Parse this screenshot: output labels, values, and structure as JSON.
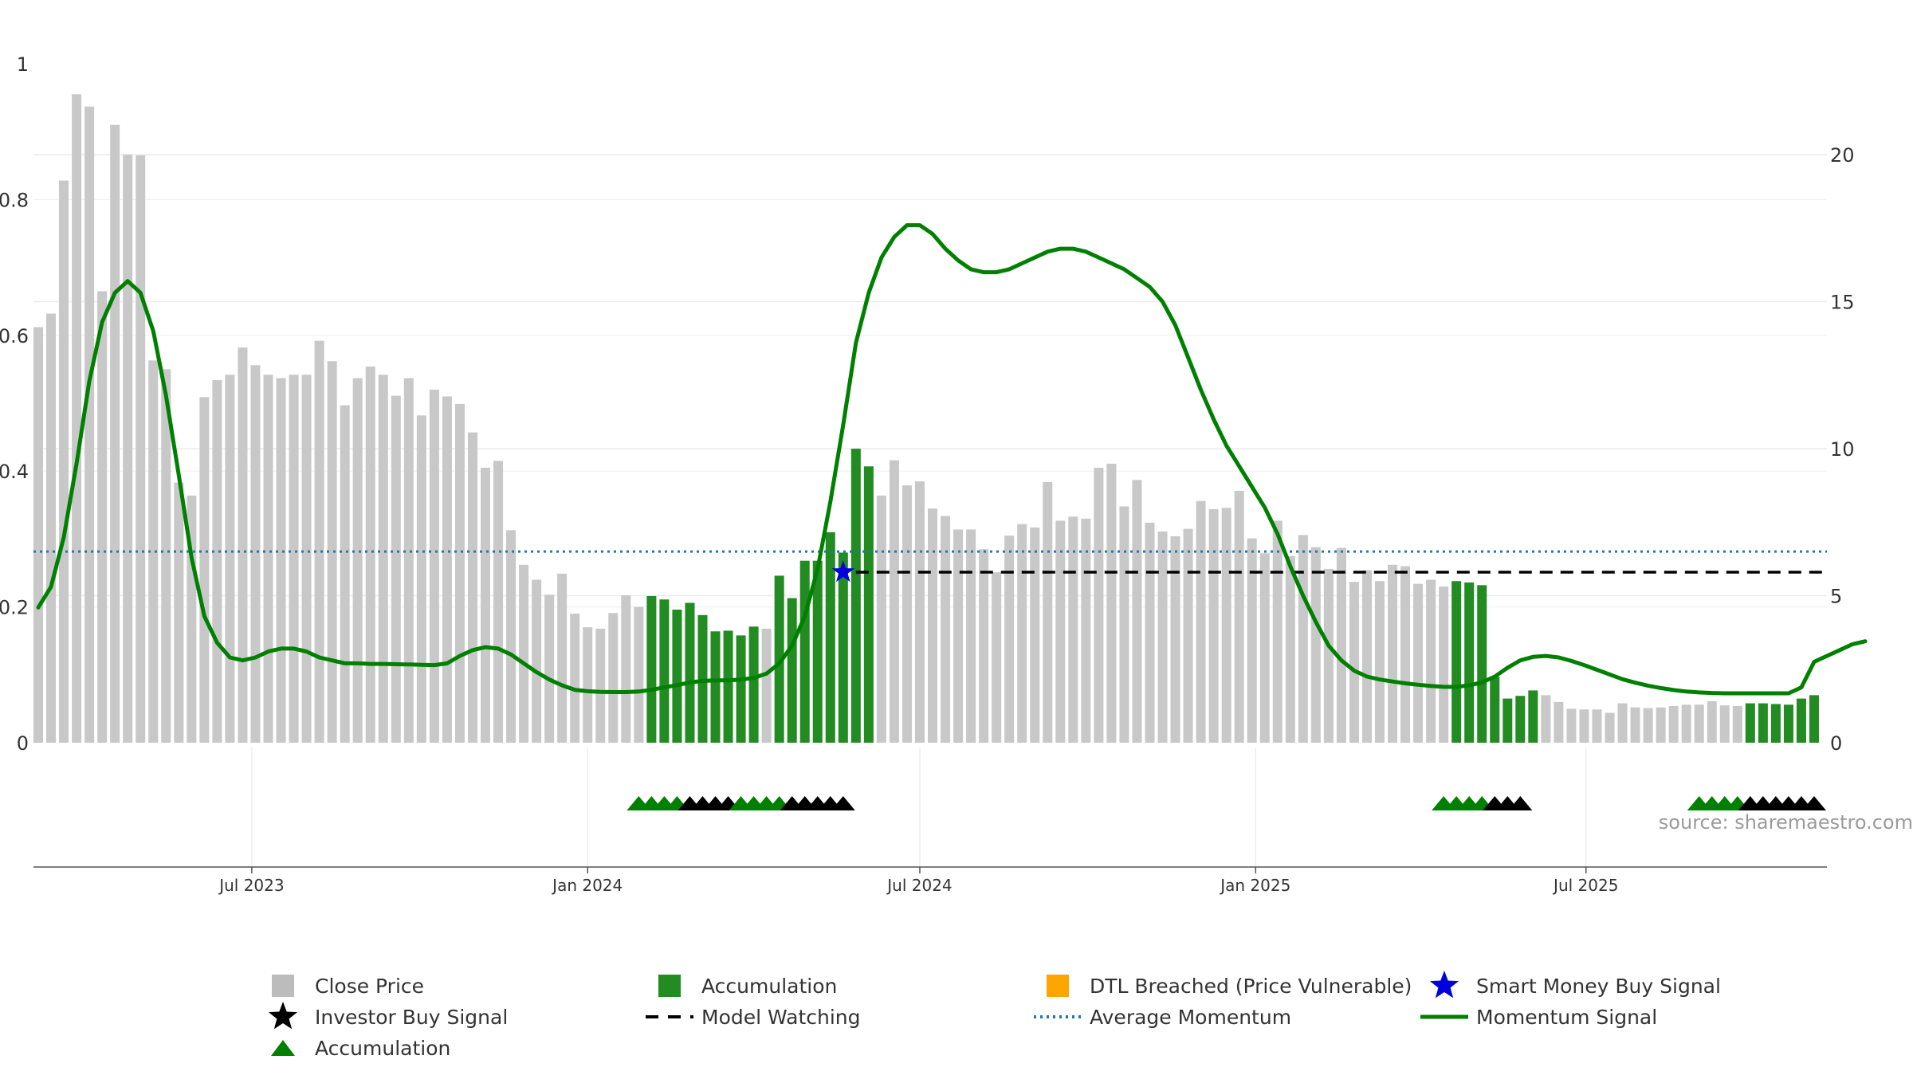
{
  "chart_data": {
    "type": "bar",
    "x": [
      "2023-03-06",
      "2023-03-13",
      "2023-03-20",
      "2023-03-27",
      "2023-04-03",
      "2023-04-10",
      "2023-04-17",
      "2023-04-24",
      "2023-05-01",
      "2023-05-08",
      "2023-05-15",
      "2023-05-22",
      "2023-05-29",
      "2023-06-05",
      "2023-06-12",
      "2023-06-19",
      "2023-06-26",
      "2023-07-03",
      "2023-07-10",
      "2023-07-17",
      "2023-07-24",
      "2023-07-31",
      "2023-08-07",
      "2023-08-14",
      "2023-08-21",
      "2023-08-28",
      "2023-09-04",
      "2023-09-11",
      "2023-09-18",
      "2023-09-25",
      "2023-10-02",
      "2023-10-09",
      "2023-10-16",
      "2023-10-23",
      "2023-10-30",
      "2023-11-06",
      "2023-11-13",
      "2023-11-20",
      "2023-11-27",
      "2023-12-04",
      "2023-12-11",
      "2023-12-18",
      "2023-12-25",
      "2024-01-01",
      "2024-01-08",
      "2024-01-15",
      "2024-01-22",
      "2024-01-29",
      "2024-02-05",
      "2024-02-12",
      "2024-02-19",
      "2024-02-26",
      "2024-03-04",
      "2024-03-11",
      "2024-03-18",
      "2024-03-25",
      "2024-04-01",
      "2024-04-08",
      "2024-04-15",
      "2024-04-22",
      "2024-04-29",
      "2024-05-06",
      "2024-05-13",
      "2024-05-20",
      "2024-05-27",
      "2024-06-03",
      "2024-06-10",
      "2024-06-17",
      "2024-06-24",
      "2024-07-01",
      "2024-07-08",
      "2024-07-15",
      "2024-07-22",
      "2024-07-29",
      "2024-08-05",
      "2024-08-12",
      "2024-08-19",
      "2024-08-26",
      "2024-09-02",
      "2024-09-09",
      "2024-09-16",
      "2024-09-23",
      "2024-09-30",
      "2024-10-07",
      "2024-10-14",
      "2024-10-21",
      "2024-10-28",
      "2024-11-04",
      "2024-11-11",
      "2024-11-18",
      "2024-11-25",
      "2024-12-02",
      "2024-12-09",
      "2024-12-16",
      "2024-12-23",
      "2024-12-30",
      "2025-01-06",
      "2025-01-13",
      "2025-01-20",
      "2025-01-27",
      "2025-02-03",
      "2025-02-10",
      "2025-02-17",
      "2025-02-24",
      "2025-03-03",
      "2025-03-10",
      "2025-03-17",
      "2025-03-24",
      "2025-03-31",
      "2025-04-07",
      "2025-04-14",
      "2025-04-21",
      "2025-04-28",
      "2025-05-05",
      "2025-05-12",
      "2025-05-19",
      "2025-05-26",
      "2025-06-02",
      "2025-06-09",
      "2025-06-16",
      "2025-06-23",
      "2025-06-30",
      "2025-07-07",
      "2025-07-14",
      "2025-07-21",
      "2025-07-28",
      "2025-08-04",
      "2025-08-11",
      "2025-08-18",
      "2025-08-25",
      "2025-09-01",
      "2025-09-08",
      "2025-09-15",
      "2025-09-22",
      "2025-09-29",
      "2025-10-06",
      "2025-10-13",
      "2025-10-20",
      "2025-10-27",
      "2025-11-03",
      "2025-11-10"
    ],
    "close_price": [
      0.612,
      0.632,
      0.828,
      0.955,
      0.937,
      0.665,
      0.91,
      0.866,
      0.865,
      0.563,
      0.55,
      0.383,
      0.364,
      0.509,
      0.534,
      0.542,
      0.582,
      0.556,
      0.542,
      0.537,
      0.542,
      0.542,
      0.592,
      0.562,
      0.497,
      0.537,
      0.554,
      0.542,
      0.511,
      0.537,
      0.482,
      0.52,
      0.51,
      0.499,
      0.457,
      0.405,
      0.415,
      0.313,
      0.262,
      0.24,
      0.218,
      0.249,
      0.19,
      0.17,
      0.168,
      0.191,
      0.217,
      0.2,
      0.216,
      0.211,
      0.196,
      0.206,
      0.188,
      0.164,
      0.165,
      0.158,
      0.171,
      0.168,
      0.246,
      0.213,
      0.268,
      0.268,
      0.31,
      0.28,
      0.433,
      0.407,
      0.364,
      0.416,
      0.379,
      0.385,
      0.345,
      0.334,
      0.314,
      0.314,
      0.285,
      0.251,
      0.305,
      0.322,
      0.317,
      0.384,
      0.327,
      0.333,
      0.33,
      0.405,
      0.411,
      0.348,
      0.387,
      0.324,
      0.311,
      0.304,
      0.315,
      0.356,
      0.344,
      0.346,
      0.371,
      0.301,
      0.279,
      0.327,
      0.275,
      0.306,
      0.288,
      0.256,
      0.287,
      0.237,
      0.254,
      0.238,
      0.262,
      0.26,
      0.234,
      0.24,
      0.23,
      0.238,
      0.236,
      0.232,
      0.097,
      0.065,
      0.069,
      0.077,
      0.07,
      0.06,
      0.05,
      0.049,
      0.049,
      0.044,
      0.058,
      0.052,
      0.051,
      0.052,
      0.054,
      0.056,
      0.056,
      0.061,
      0.055,
      0.054,
      0.058,
      0.058,
      0.057,
      0.056,
      0.065,
      0.07
    ],
    "accumulation_weeks": [
      48,
      49,
      50,
      51,
      52,
      53,
      54,
      55,
      56,
      58,
      59,
      60,
      61,
      62,
      63,
      64,
      65,
      111,
      112,
      113,
      114,
      115,
      116,
      117,
      134,
      135,
      136,
      137,
      138,
      139,
      140,
      141,
      142,
      143
    ],
    "momentum_signal": [
      4.6,
      5.3,
      7.0,
      9.5,
      12.3,
      14.3,
      15.3,
      15.7,
      15.3,
      14.0,
      11.8,
      9.1,
      6.3,
      4.3,
      3.4,
      2.9,
      2.8,
      2.9,
      3.1,
      3.2,
      3.2,
      3.1,
      2.9,
      2.8,
      2.7,
      2.7,
      2.68,
      2.68,
      2.67,
      2.66,
      2.65,
      2.64,
      2.7,
      2.95,
      3.15,
      3.25,
      3.2,
      3.0,
      2.7,
      2.4,
      2.15,
      1.95,
      1.8,
      1.75,
      1.73,
      1.72,
      1.72,
      1.74,
      1.8,
      1.88,
      1.96,
      2.05,
      2.1,
      2.12,
      2.12,
      2.15,
      2.2,
      2.35,
      2.7,
      3.3,
      4.3,
      5.9,
      8.2,
      10.8,
      13.6,
      15.3,
      16.5,
      17.2,
      17.6,
      17.6,
      17.3,
      16.8,
      16.4,
      16.1,
      16.0,
      16.0,
      16.1,
      16.3,
      16.5,
      16.7,
      16.8,
      16.8,
      16.7,
      16.5,
      16.3,
      16.1,
      15.8,
      15.5,
      15.0,
      14.2,
      13.1,
      12.0,
      11.0,
      10.1,
      9.4,
      8.7,
      8.0,
      7.1,
      6.0,
      5.0,
      4.1,
      3.3,
      2.8,
      2.45,
      2.25,
      2.15,
      2.08,
      2.02,
      1.97,
      1.93,
      1.9,
      1.9,
      1.95,
      2.05,
      2.25,
      2.55,
      2.8,
      2.92,
      2.95,
      2.9,
      2.78,
      2.64,
      2.48,
      2.32,
      2.16,
      2.04,
      1.94,
      1.86,
      1.79,
      1.74,
      1.71,
      1.69,
      1.68,
      1.68,
      1.68,
      1.68,
      1.68,
      1.68,
      1.88,
      2.75,
      2.95,
      3.15,
      3.35,
      3.45
    ],
    "average_momentum": 6.5,
    "model_watching_level": 5.8,
    "smart_money_buy_signal": {
      "week": 63,
      "momentum": 5.8
    },
    "markers": [
      {
        "week": 47,
        "kind": "accumulation"
      },
      {
        "week": 48,
        "kind": "accumulation"
      },
      {
        "week": 49,
        "kind": "accumulation"
      },
      {
        "week": 50,
        "kind": "accumulation"
      },
      {
        "week": 51,
        "kind": "investor_buy"
      },
      {
        "week": 52,
        "kind": "investor_buy"
      },
      {
        "week": 53,
        "kind": "investor_buy"
      },
      {
        "week": 54,
        "kind": "investor_buy"
      },
      {
        "week": 55,
        "kind": "accumulation"
      },
      {
        "week": 56,
        "kind": "accumulation"
      },
      {
        "week": 57,
        "kind": "accumulation"
      },
      {
        "week": 58,
        "kind": "accumulation"
      },
      {
        "week": 59,
        "kind": "investor_buy"
      },
      {
        "week": 60,
        "kind": "investor_buy"
      },
      {
        "week": 61,
        "kind": "investor_buy"
      },
      {
        "week": 62,
        "kind": "investor_buy"
      },
      {
        "week": 63,
        "kind": "investor_buy"
      },
      {
        "week": 110,
        "kind": "accumulation"
      },
      {
        "week": 111,
        "kind": "accumulation"
      },
      {
        "week": 112,
        "kind": "accumulation"
      },
      {
        "week": 113,
        "kind": "accumulation"
      },
      {
        "week": 114,
        "kind": "investor_buy"
      },
      {
        "week": 115,
        "kind": "investor_buy"
      },
      {
        "week": 116,
        "kind": "investor_buy"
      },
      {
        "week": 130,
        "kind": "accumulation"
      },
      {
        "week": 131,
        "kind": "accumulation"
      },
      {
        "week": 132,
        "kind": "accumulation"
      },
      {
        "week": 133,
        "kind": "accumulation"
      },
      {
        "week": 134,
        "kind": "investor_buy"
      },
      {
        "week": 135,
        "kind": "investor_buy"
      },
      {
        "week": 136,
        "kind": "investor_buy"
      },
      {
        "week": 137,
        "kind": "investor_buy"
      },
      {
        "week": 138,
        "kind": "investor_buy"
      },
      {
        "week": 139,
        "kind": "investor_buy"
      }
    ],
    "left_axis": {
      "ylim": [
        0,
        1.1
      ],
      "ticks": [
        "0",
        "0.2",
        "0.4",
        "0.6",
        "0.8",
        "1"
      ]
    },
    "right_axis": {
      "ylim": [
        0,
        25
      ],
      "ticks": [
        "0",
        "5",
        "10",
        "15",
        "20"
      ]
    },
    "x_ticks": [
      {
        "date": "2023-07-01",
        "label": "Jul 2023"
      },
      {
        "date": "2024-01-01",
        "label": "Jan 2024"
      },
      {
        "date": "2024-07-01",
        "label": "Jul 2024"
      },
      {
        "date": "2025-01-01",
        "label": "Jan 2025"
      },
      {
        "date": "2025-07-01",
        "label": "Jul 2025"
      }
    ],
    "colors": {
      "close_price": "#c8c8c8",
      "accumulation": "#228b22",
      "dtl_breached": "#ffa500",
      "smart_money": "#0000dd",
      "investor_buy": "#000000",
      "accumulation_marker": "#008000",
      "model_watching": "#000000",
      "average_momentum": "#1f77b4",
      "momentum_signal": "#008000"
    },
    "source_note": "source: sharemaestro.com",
    "legend": [
      {
        "label": "Close Price",
        "symbol": "square",
        "color": "#bcbcbc"
      },
      {
        "label": "Accumulation",
        "symbol": "square",
        "color": "#228b22"
      },
      {
        "label": "DTL Breached (Price Vulnerable)",
        "symbol": "square",
        "color": "#ffa500"
      },
      {
        "label": "Smart Money Buy Signal",
        "symbol": "star",
        "color": "#0000dd"
      },
      {
        "label": "Investor Buy Signal",
        "symbol": "star",
        "color": "#000000"
      },
      {
        "label": "Model Watching",
        "symbol": "dash",
        "color": "#000000"
      },
      {
        "label": "Average Momentum",
        "symbol": "dot",
        "color": "#1f77b4"
      },
      {
        "label": "Momentum Signal",
        "symbol": "line",
        "color": "#008000"
      },
      {
        "label": "Accumulation",
        "symbol": "triangle",
        "color": "#008000"
      }
    ],
    "grid": true,
    "legend_position": "bottom"
  }
}
